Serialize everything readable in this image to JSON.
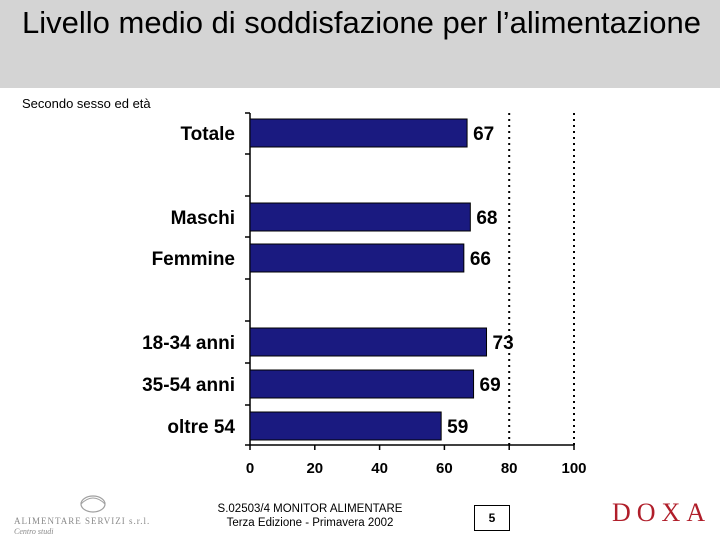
{
  "header": {
    "title": "Livello medio di soddisfazione per l’alimentazione",
    "subtitle": "Secondo sesso ed età"
  },
  "chart_data": {
    "type": "bar",
    "orientation": "horizontal",
    "categories": [
      "Totale",
      "Maschi",
      "Femmine",
      "18-34 anni",
      "35-54 anni",
      "oltre 54"
    ],
    "values": [
      67,
      68,
      66,
      73,
      69,
      59
    ],
    "xlim": [
      0,
      100
    ],
    "xticks": [
      0,
      20,
      40,
      60,
      80,
      100
    ],
    "gridlines": [
      80,
      100
    ],
    "bar_color": "#1a1a80",
    "title": "",
    "xlabel": "",
    "ylabel": ""
  },
  "footer": {
    "logo_name": "ALIMENTARE SERVIZI s.r.l.",
    "logo_sub": "Centro studi",
    "study_line1": "S.02503/4 MONITOR ALIMENTARE",
    "study_line2": "Terza Edizione - Primavera 2002",
    "page_number": "5",
    "brand": "DOXA"
  }
}
